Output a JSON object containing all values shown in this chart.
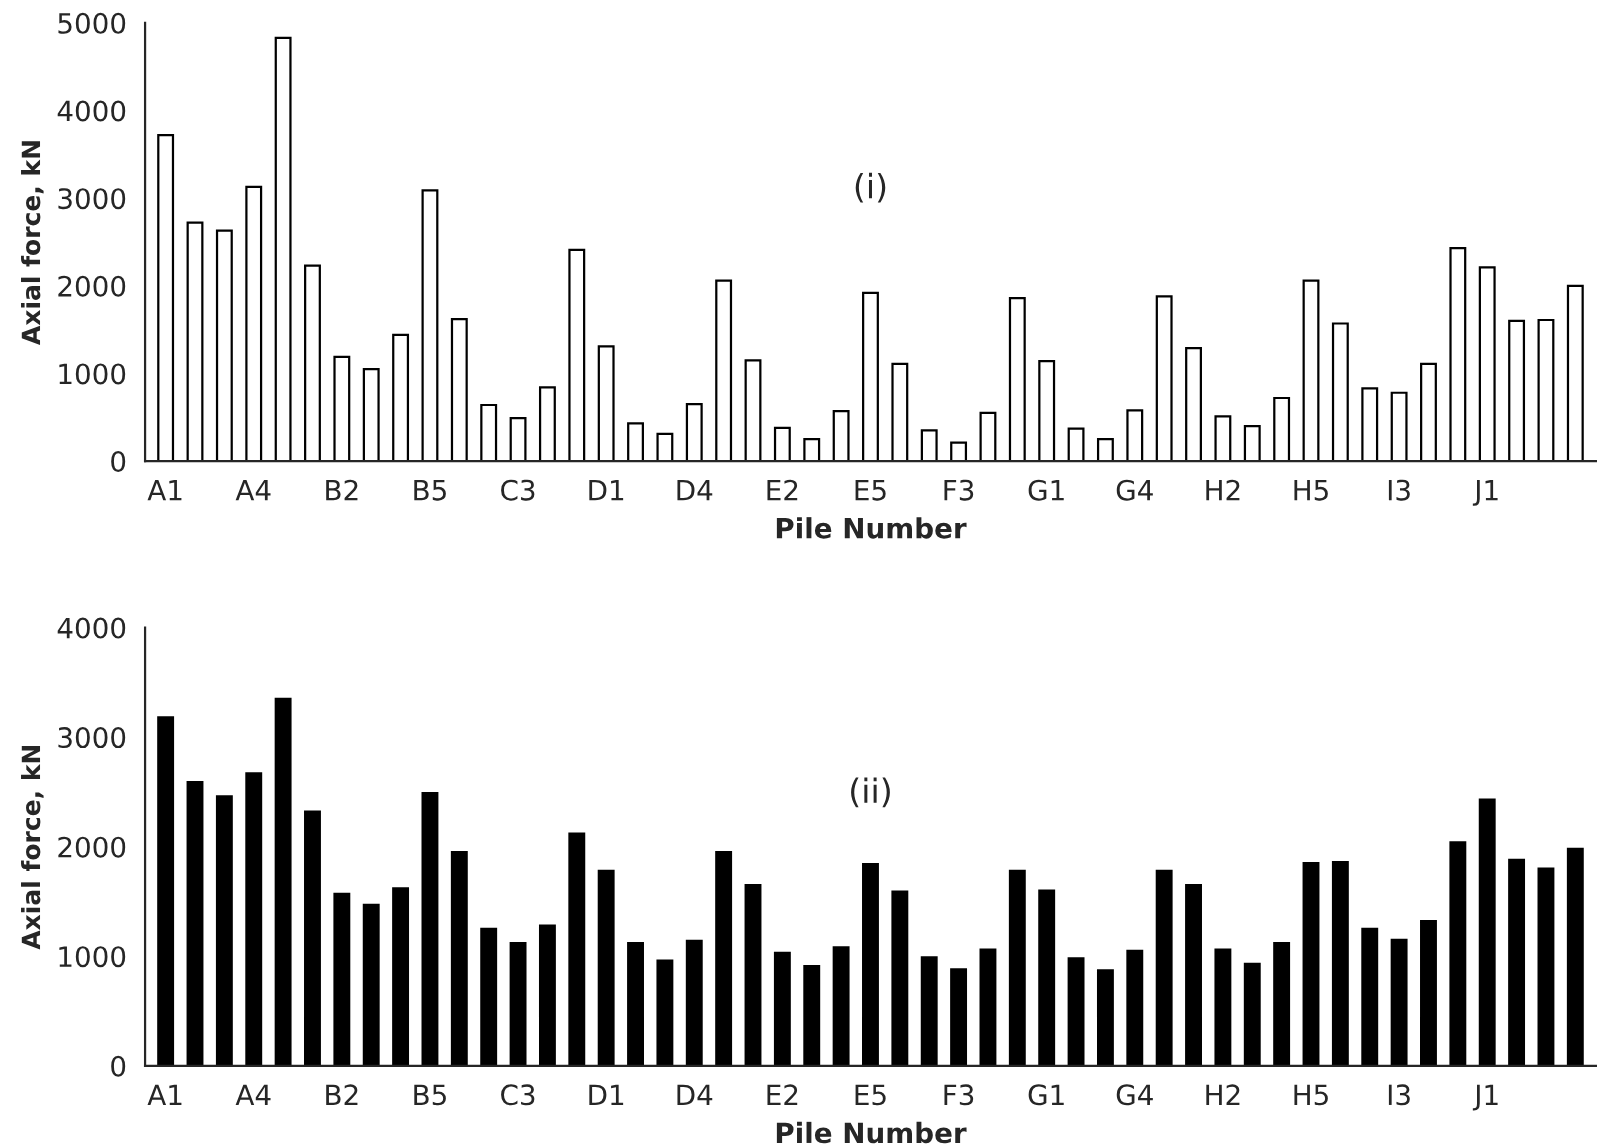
{
  "chart_data": [
    {
      "type": "bar",
      "xlabel": "Pile Number",
      "ylabel": "Axial force, kN",
      "annotations": [
        "(i)"
      ],
      "ylim": [
        0,
        5000
      ],
      "yticks": [
        0,
        1000,
        2000,
        3000,
        4000,
        5000
      ],
      "grid": false,
      "legend": false,
      "categories": [
        "A1",
        null,
        null,
        "A4",
        null,
        null,
        "B2",
        null,
        null,
        "B5",
        null,
        null,
        "C3",
        null,
        null,
        "D1",
        null,
        null,
        "D4",
        null,
        null,
        "E2",
        null,
        null,
        "E5",
        null,
        null,
        "F3",
        null,
        null,
        "G1",
        null,
        null,
        "G4",
        null,
        null,
        "H2",
        null,
        null,
        "H5",
        null,
        null,
        "I3",
        null,
        null,
        "J1",
        null,
        null,
        null
      ],
      "series": [
        {
          "color": "#ffffff",
          "values": [
            3720,
            2720,
            2630,
            3130,
            4830,
            2230,
            1190,
            1050,
            1440,
            3090,
            1620,
            640,
            490,
            840,
            2410,
            1310,
            430,
            310,
            650,
            2060,
            1150,
            380,
            250,
            570,
            1920,
            1110,
            350,
            210,
            550,
            1860,
            1140,
            370,
            250,
            580,
            1880,
            1290,
            510,
            400,
            720,
            2060,
            1570,
            830,
            780,
            1110,
            2430,
            2210,
            1600,
            1610,
            2000
          ]
        }
      ]
    },
    {
      "type": "bar",
      "xlabel": "Pile Number",
      "ylabel": "Axial force, kN",
      "annotations": [
        "(ii)"
      ],
      "ylim": [
        0,
        4000
      ],
      "yticks": [
        0,
        1000,
        2000,
        3000,
        4000
      ],
      "grid": false,
      "legend": false,
      "categories": [
        "A1",
        null,
        null,
        "A4",
        null,
        null,
        "B2",
        null,
        null,
        "B5",
        null,
        null,
        "C3",
        null,
        null,
        "D1",
        null,
        null,
        "D4",
        null,
        null,
        "E2",
        null,
        null,
        "E5",
        null,
        null,
        "F3",
        null,
        null,
        "G1",
        null,
        null,
        "G4",
        null,
        null,
        "H2",
        null,
        null,
        "H5",
        null,
        null,
        "I3",
        null,
        null,
        "J1",
        null,
        null,
        null
      ],
      "series": [
        {
          "color": "#000000",
          "values": [
            3180,
            2590,
            2460,
            2670,
            3350,
            2320,
            1570,
            1470,
            1620,
            2490,
            1950,
            1250,
            1120,
            1280,
            2120,
            1780,
            1120,
            960,
            1140,
            1950,
            1650,
            1030,
            910,
            1080,
            1840,
            1590,
            990,
            880,
            1060,
            1780,
            1600,
            980,
            870,
            1050,
            1780,
            1650,
            1060,
            930,
            1120,
            1850,
            1860,
            1250,
            1150,
            1320,
            2040,
            2430,
            1880,
            1800,
            1980
          ]
        }
      ]
    }
  ]
}
